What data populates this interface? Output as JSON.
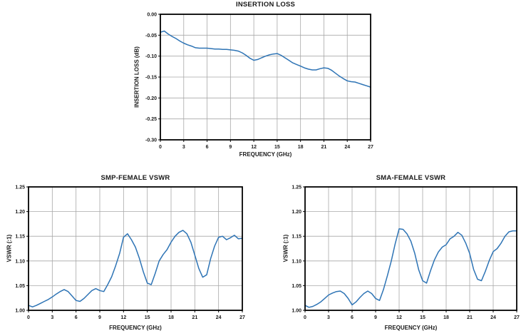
{
  "colors": {
    "line": "#2e74b5",
    "grid": "#a8a8a8",
    "axis": "#000000",
    "text": "#1a1a1a",
    "background": "#ffffff"
  },
  "chart_data": [
    {
      "id": "insertion-loss",
      "type": "line",
      "title": "INSERTION LOSS",
      "xlabel": "FREQUENCY (GHz)",
      "ylabel": "INSERTION LOSS (dB)",
      "xlim": [
        0,
        27
      ],
      "ylim": [
        -0.3,
        0.0
      ],
      "grid": true,
      "legend": "none",
      "xticks": {
        "values": [
          0,
          3,
          6,
          9,
          12,
          15,
          18,
          21,
          24,
          27
        ],
        "labels": [
          "0",
          "3",
          "6",
          "9",
          "12",
          "15",
          "18",
          "21",
          "24",
          "27"
        ]
      },
      "yticks": {
        "values": [
          0.0,
          -0.05,
          -0.1,
          -0.15,
          -0.2,
          -0.25,
          -0.3
        ],
        "labels": [
          "0.00",
          "-0.05",
          "-0.10",
          "-0.15",
          "-0.20",
          "-0.25",
          "-0.30"
        ]
      },
      "x": [
        0,
        0.5,
        1,
        1.5,
        2,
        2.5,
        3,
        3.5,
        4,
        4.5,
        5,
        5.5,
        6,
        6.5,
        7,
        7.5,
        8,
        8.5,
        9,
        9.5,
        10,
        10.5,
        11,
        11.5,
        12,
        12.5,
        13,
        13.5,
        14,
        14.5,
        15,
        15.5,
        16,
        16.5,
        17,
        17.5,
        18,
        18.5,
        19,
        19.5,
        20,
        20.5,
        21,
        21.5,
        22,
        22.5,
        23,
        23.5,
        24,
        24.5,
        25,
        25.5,
        26,
        26.5,
        27
      ],
      "y": [
        -0.043,
        -0.04,
        -0.047,
        -0.053,
        -0.058,
        -0.064,
        -0.069,
        -0.073,
        -0.076,
        -0.08,
        -0.081,
        -0.081,
        -0.081,
        -0.082,
        -0.083,
        -0.083,
        -0.084,
        -0.084,
        -0.085,
        -0.086,
        -0.088,
        -0.092,
        -0.098,
        -0.105,
        -0.11,
        -0.108,
        -0.104,
        -0.1,
        -0.097,
        -0.095,
        -0.094,
        -0.098,
        -0.104,
        -0.11,
        -0.116,
        -0.12,
        -0.124,
        -0.128,
        -0.131,
        -0.133,
        -0.133,
        -0.13,
        -0.128,
        -0.129,
        -0.134,
        -0.141,
        -0.148,
        -0.154,
        -0.159,
        -0.161,
        -0.162,
        -0.165,
        -0.168,
        -0.171,
        -0.174
      ]
    },
    {
      "id": "smp-female-vswr",
      "type": "line",
      "title": "SMP-FEMALE VSWR",
      "xlabel": "FREQUENCY (GHz)",
      "ylabel": "VSWR (:1)",
      "xlim": [
        0,
        27
      ],
      "ylim": [
        1.0,
        1.25
      ],
      "grid": true,
      "legend": "none",
      "xticks": {
        "values": [
          0,
          3,
          6,
          9,
          12,
          15,
          18,
          21,
          24,
          27
        ],
        "labels": [
          "0",
          "3",
          "6",
          "9",
          "12",
          "15",
          "18",
          "21",
          "24",
          "27"
        ]
      },
      "yticks": {
        "values": [
          1.0,
          1.05,
          1.1,
          1.15,
          1.2,
          1.25
        ],
        "labels": [
          "1.00",
          "1.05",
          "1.10",
          "1.15",
          "1.20",
          "1.25"
        ]
      },
      "x": [
        0,
        0.5,
        1,
        1.5,
        2,
        2.5,
        3,
        3.5,
        4,
        4.5,
        5,
        5.5,
        6,
        6.5,
        7,
        7.5,
        8,
        8.5,
        9,
        9.5,
        10,
        10.5,
        11,
        11.5,
        12,
        12.5,
        13,
        13.5,
        14,
        14.5,
        15,
        15.5,
        16,
        16.5,
        17,
        17.5,
        18,
        18.5,
        19,
        19.5,
        20,
        20.5,
        21,
        21.5,
        22,
        22.5,
        23,
        23.5,
        24,
        24.5,
        25,
        25.5,
        26,
        26.5,
        27
      ],
      "y": [
        1.01,
        1.007,
        1.01,
        1.014,
        1.018,
        1.022,
        1.027,
        1.033,
        1.038,
        1.042,
        1.038,
        1.029,
        1.02,
        1.018,
        1.024,
        1.032,
        1.04,
        1.044,
        1.04,
        1.038,
        1.052,
        1.068,
        1.09,
        1.115,
        1.148,
        1.155,
        1.143,
        1.128,
        1.105,
        1.078,
        1.055,
        1.052,
        1.075,
        1.1,
        1.113,
        1.123,
        1.138,
        1.15,
        1.158,
        1.162,
        1.155,
        1.138,
        1.112,
        1.085,
        1.067,
        1.072,
        1.105,
        1.13,
        1.148,
        1.15,
        1.143,
        1.147,
        1.152,
        1.145,
        1.146
      ]
    },
    {
      "id": "sma-female-vswr",
      "type": "line",
      "title": "SMA-FEMALE VSWR",
      "xlabel": "FREQUENCY (GHz)",
      "ylabel": "VSWR (:1)",
      "xlim": [
        0,
        27
      ],
      "ylim": [
        1.0,
        1.25
      ],
      "grid": true,
      "legend": "none",
      "xticks": {
        "values": [
          0,
          3,
          6,
          9,
          12,
          15,
          18,
          21,
          24,
          27
        ],
        "labels": [
          "0",
          "3",
          "6",
          "9",
          "12",
          "15",
          "18",
          "21",
          "24",
          "27"
        ]
      },
      "yticks": {
        "values": [
          1.0,
          1.05,
          1.1,
          1.15,
          1.2,
          1.25
        ],
        "labels": [
          "1.00",
          "1.05",
          "1.10",
          "1.15",
          "1.20",
          "1.25"
        ]
      },
      "x": [
        0,
        0.5,
        1,
        1.5,
        2,
        2.5,
        3,
        3.5,
        4,
        4.5,
        5,
        5.5,
        6,
        6.5,
        7,
        7.5,
        8,
        8.5,
        9,
        9.5,
        10,
        10.5,
        11,
        11.5,
        12,
        12.5,
        13,
        13.5,
        14,
        14.5,
        15,
        15.5,
        16,
        16.5,
        17,
        17.5,
        18,
        18.5,
        19,
        19.5,
        20,
        20.5,
        21,
        21.5,
        22,
        22.5,
        23,
        23.5,
        24,
        24.5,
        25,
        25.5,
        26,
        26.5,
        27
      ],
      "y": [
        1.01,
        1.006,
        1.008,
        1.012,
        1.017,
        1.024,
        1.031,
        1.035,
        1.038,
        1.039,
        1.034,
        1.024,
        1.011,
        1.017,
        1.026,
        1.034,
        1.039,
        1.034,
        1.024,
        1.02,
        1.042,
        1.07,
        1.1,
        1.135,
        1.165,
        1.164,
        1.155,
        1.14,
        1.115,
        1.082,
        1.06,
        1.055,
        1.08,
        1.102,
        1.118,
        1.128,
        1.133,
        1.145,
        1.15,
        1.158,
        1.152,
        1.136,
        1.115,
        1.083,
        1.063,
        1.06,
        1.079,
        1.101,
        1.119,
        1.125,
        1.136,
        1.15,
        1.159,
        1.161,
        1.161
      ]
    }
  ]
}
